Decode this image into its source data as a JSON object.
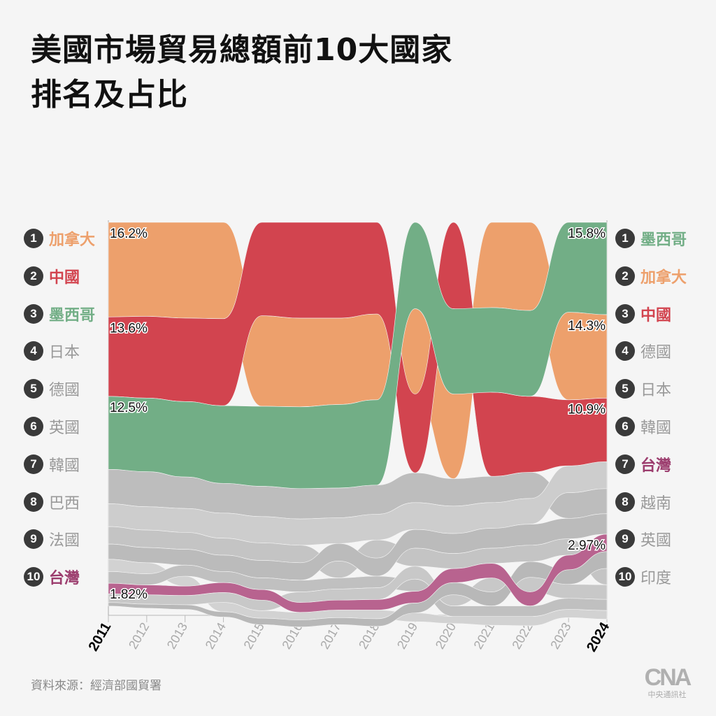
{
  "title": [
    "美國市場貿易總額前10大國家",
    "排名及占比"
  ],
  "source": "資料來源：經濟部國貿署",
  "logo": {
    "mark": "CNA",
    "sub": "中央通訊社"
  },
  "left_ranking": [
    {
      "rank": "1",
      "name": "加拿大",
      "color": "#EDA06C"
    },
    {
      "rank": "2",
      "name": "中國",
      "color": "#D2444F"
    },
    {
      "rank": "3",
      "name": "墨西哥",
      "color": "#72AE86"
    },
    {
      "rank": "4",
      "name": "日本",
      "color": ""
    },
    {
      "rank": "5",
      "name": "德國",
      "color": ""
    },
    {
      "rank": "6",
      "name": "英國",
      "color": ""
    },
    {
      "rank": "7",
      "name": "韓國",
      "color": ""
    },
    {
      "rank": "8",
      "name": "巴西",
      "color": ""
    },
    {
      "rank": "9",
      "name": "法國",
      "color": ""
    },
    {
      "rank": "10",
      "name": "台灣",
      "color": "#9C3D6E"
    }
  ],
  "right_ranking": [
    {
      "rank": "1",
      "name": "墨西哥",
      "color": "#72AE86"
    },
    {
      "rank": "2",
      "name": "加拿大",
      "color": "#EDA06C"
    },
    {
      "rank": "3",
      "name": "中國",
      "color": "#D2444F"
    },
    {
      "rank": "4",
      "name": "德國",
      "color": ""
    },
    {
      "rank": "5",
      "name": "日本",
      "color": ""
    },
    {
      "rank": "6",
      "name": "韓國",
      "color": ""
    },
    {
      "rank": "7",
      "name": "台灣",
      "color": "#9C3D6E"
    },
    {
      "rank": "8",
      "name": "越南",
      "color": ""
    },
    {
      "rank": "9",
      "name": "英國",
      "color": ""
    },
    {
      "rank": "10",
      "name": "印度",
      "color": ""
    }
  ],
  "chart_data": {
    "type": "area",
    "subtype": "ranked ribbon (bump) chart, bands stacked by rank, thickness = share",
    "x": [
      2011,
      2012,
      2013,
      2014,
      2015,
      2016,
      2017,
      2018,
      2019,
      2020,
      2021,
      2022,
      2023,
      2024
    ],
    "x_tick_labels": [
      "2011",
      "2012",
      "2013",
      "2014",
      "2015",
      "2016",
      "2017",
      "2018",
      "2019",
      "2020",
      "2021",
      "2022",
      "2023",
      "2024"
    ],
    "unit": "%",
    "series": [
      {
        "name": "加拿大",
        "color": "#EDA06C",
        "values": [
          16.2,
          16.1,
          16.4,
          16.5,
          15.5,
          15.2,
          14.8,
          14.7,
          14.6,
          14.5,
          14.6,
          15.1,
          15.0,
          14.3
        ]
      },
      {
        "name": "中國",
        "color": "#D2444F",
        "values": [
          13.6,
          14.0,
          14.3,
          14.9,
          16.0,
          16.4,
          16.4,
          15.7,
          13.5,
          14.8,
          14.4,
          13.0,
          11.3,
          10.9
        ]
      },
      {
        "name": "墨西哥",
        "color": "#72AE86",
        "values": [
          12.5,
          12.6,
          12.9,
          13.3,
          13.7,
          14.0,
          14.3,
          14.6,
          14.8,
          14.6,
          14.5,
          14.7,
          15.4,
          15.8
        ]
      },
      {
        "name": "台灣",
        "color": "#B8638F",
        "values": [
          1.82,
          1.7,
          1.6,
          1.7,
          1.8,
          1.7,
          1.7,
          1.8,
          2.0,
          2.4,
          2.5,
          2.4,
          2.5,
          2.97
        ]
      },
      {
        "name": "日本",
        "color": "#BDBDBD",
        "values": [
          5.9,
          6.0,
          5.4,
          5.1,
          5.2,
          5.2,
          5.1,
          5.0,
          5.1,
          4.7,
          4.5,
          4.5,
          4.4,
          4.3
        ]
      },
      {
        "name": "德國",
        "color": "#CDCDCD",
        "values": [
          3.9,
          4.0,
          4.1,
          4.3,
          4.5,
          4.5,
          4.4,
          4.4,
          4.6,
          4.7,
          4.4,
          4.4,
          4.6,
          4.6
        ]
      },
      {
        "name": "英國",
        "color": "#C4C4C4",
        "values": [
          3.0,
          3.0,
          2.9,
          2.9,
          3.0,
          3.0,
          2.9,
          3.1,
          3.1,
          2.6,
          2.6,
          2.8,
          2.8,
          2.8
        ]
      },
      {
        "name": "韓國",
        "color": "#BBBBBB",
        "values": [
          2.6,
          2.6,
          2.7,
          2.8,
          3.0,
          3.0,
          3.0,
          3.1,
          3.2,
          3.4,
          3.4,
          3.6,
          3.5,
          3.5
        ]
      },
      {
        "name": "巴西",
        "color": "#D2D2D2",
        "values": [
          2.1,
          1.9,
          1.7,
          1.6,
          1.3,
          1.3,
          1.3,
          1.5,
          1.5,
          1.2,
          1.5,
          1.6,
          1.4,
          1.5
        ]
      },
      {
        "name": "法國",
        "color": "#C0C0C0",
        "values": [
          2.0,
          1.9,
          1.9,
          1.9,
          2.0,
          2.0,
          1.9,
          2.0,
          2.1,
          1.8,
          1.8,
          1.8,
          1.9,
          1.9
        ]
      },
      {
        "name": "印度",
        "color": "#C8C8C8",
        "values": [
          1.5,
          1.6,
          1.6,
          1.7,
          1.8,
          1.8,
          1.9,
          2.0,
          2.2,
          1.9,
          2.4,
          2.5,
          2.4,
          2.5
        ]
      },
      {
        "name": "越南",
        "color": "#B8B8B8",
        "values": [
          0.6,
          0.7,
          0.8,
          0.9,
          1.1,
          1.2,
          1.2,
          1.3,
          1.7,
          2.1,
          2.4,
          2.7,
          2.5,
          2.9
        ]
      }
    ],
    "data_labels": [
      {
        "series": "加拿大",
        "x": 2011,
        "text": "16.2%"
      },
      {
        "series": "中國",
        "x": 2011,
        "text": "13.6%"
      },
      {
        "series": "墨西哥",
        "x": 2011,
        "text": "12.5%"
      },
      {
        "series": "台灣",
        "x": 2011,
        "text": "1.82%"
      },
      {
        "series": "墨西哥",
        "x": 2024,
        "text": "15.8%"
      },
      {
        "series": "加拿大",
        "x": 2024,
        "text": "14.3%"
      },
      {
        "series": "中國",
        "x": 2024,
        "text": "10.9%"
      },
      {
        "series": "台灣",
        "x": 2024,
        "text": "2.97%"
      }
    ],
    "highlighted_ticks": [
      "2011",
      "2024"
    ]
  }
}
